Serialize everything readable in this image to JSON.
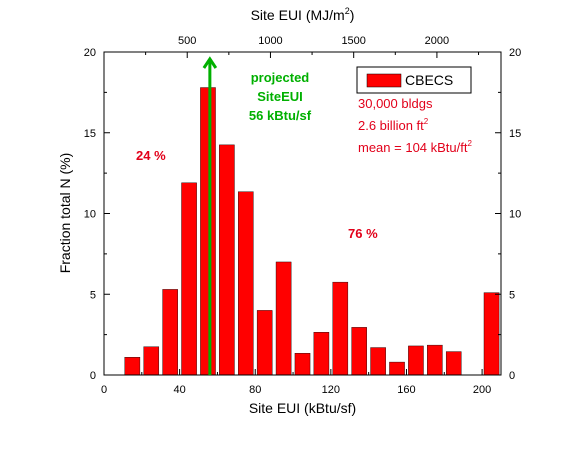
{
  "chart_data": {
    "type": "bar",
    "xlabel": "Site EUI (kBtu/sf)",
    "ylabel": "Fraction total N (%)",
    "top_xlabel": "Site EUI (MJ/m",
    "top_xlabel_sup": "2",
    "top_xlabel_end": ")",
    "xlim": [
      0,
      210
    ],
    "ylim": [
      0,
      20
    ],
    "x_ticks": [
      "0",
      "40",
      "80",
      "120",
      "160",
      "200"
    ],
    "x_tick_values": [
      0,
      40,
      80,
      120,
      160,
      200
    ],
    "y_ticks": [
      "0",
      "5",
      "10",
      "15",
      "20"
    ],
    "y_tick_values": [
      0,
      5,
      10,
      15,
      20
    ],
    "top_ticks": [
      "500",
      "1000",
      "1500",
      "2000"
    ],
    "top_tick_values": [
      500,
      1000,
      1500,
      2000
    ],
    "top_xlim_mj": [
      0,
      2385
    ],
    "bar_width": 8,
    "bar_color": "#ff0000",
    "bars": [
      {
        "x": 15,
        "value": 1.1
      },
      {
        "x": 25,
        "value": 1.75
      },
      {
        "x": 35,
        "value": 5.3
      },
      {
        "x": 45,
        "value": 11.9
      },
      {
        "x": 55,
        "value": 17.8
      },
      {
        "x": 65,
        "value": 14.25
      },
      {
        "x": 75,
        "value": 11.35
      },
      {
        "x": 85,
        "value": 4.0
      },
      {
        "x": 95,
        "value": 7.0
      },
      {
        "x": 105,
        "value": 1.35
      },
      {
        "x": 115,
        "value": 2.65
      },
      {
        "x": 125,
        "value": 5.75
      },
      {
        "x": 135,
        "value": 2.95
      },
      {
        "x": 145,
        "value": 1.7
      },
      {
        "x": 155,
        "value": 0.8
      },
      {
        "x": 165,
        "value": 1.8
      },
      {
        "x": 175,
        "value": 1.85
      },
      {
        "x": 185,
        "value": 1.45
      },
      {
        "x": 205,
        "value": 5.1
      }
    ],
    "legend": {
      "label": "CBECS",
      "placement": "top-right"
    },
    "stats": {
      "line1": "30,000 bldgs",
      "line2_pre": "2.6 billion ft",
      "line2_sup": "2",
      "line3_pre": "mean = 104 kBtu/ft",
      "line3_sup": "2"
    },
    "projected_marker": {
      "x": 56,
      "color": "#00b000",
      "label_lines": [
        "projected",
        "SiteEUI",
        "56 kBtu/sf"
      ]
    },
    "annotations": [
      {
        "text": "24 %"
      },
      {
        "text": "76 %"
      }
    ]
  }
}
